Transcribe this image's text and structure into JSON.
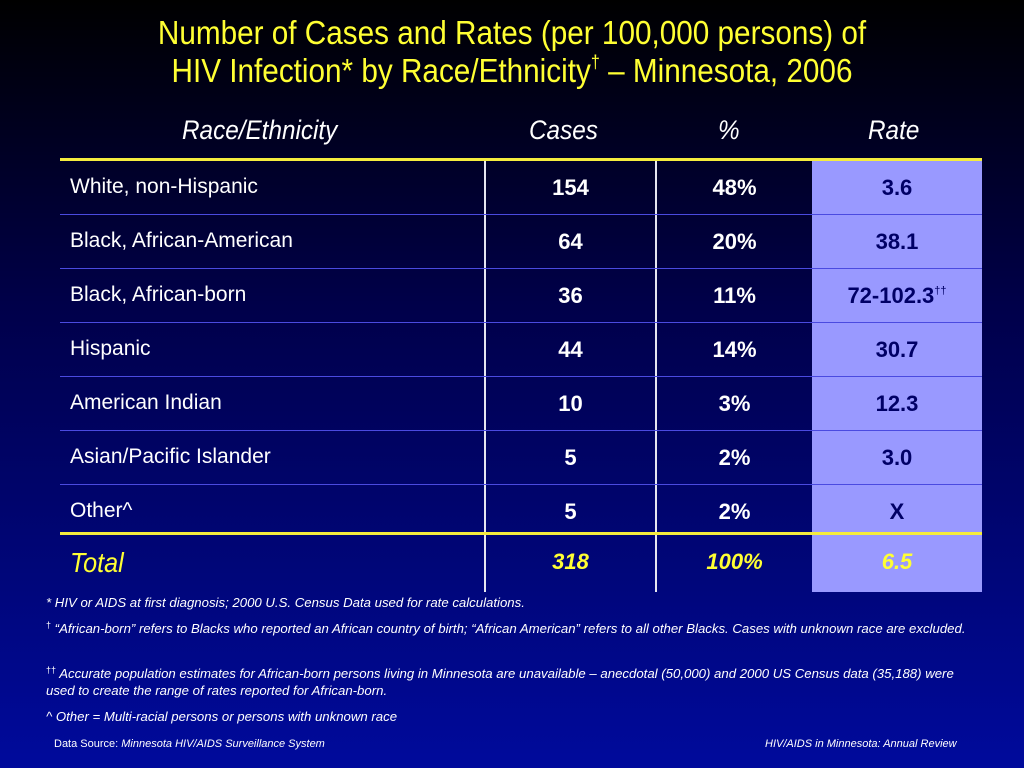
{
  "title": {
    "line1": "Number of Cases and Rates (per 100,000 persons) of",
    "line2_main": "HIV Infection* by Race/Ethnicity",
    "line2_mark": "†",
    "line2_tail": " – Minnesota, 2006"
  },
  "columns": {
    "race": "Race/Ethnicity",
    "cases": "Cases",
    "pct": "%",
    "rate": "Rate"
  },
  "rows": [
    {
      "race": "White, non-Hispanic",
      "cases": "154",
      "pct": "48%",
      "rate": "3.6",
      "rate_mark": ""
    },
    {
      "race": "Black, African-American",
      "cases": "64",
      "pct": "20%",
      "rate": "38.1",
      "rate_mark": ""
    },
    {
      "race": "Black, African-born",
      "cases": "36",
      "pct": "11%",
      "rate": "72-102.3",
      "rate_mark": "††"
    },
    {
      "race": "Hispanic",
      "cases": "44",
      "pct": "14%",
      "rate": "30.7",
      "rate_mark": ""
    },
    {
      "race": "American Indian",
      "cases": "10",
      "pct": "3%",
      "rate": "12.3",
      "rate_mark": ""
    },
    {
      "race": "Asian/Pacific Islander",
      "cases": "5",
      "pct": "2%",
      "rate": "3.0",
      "rate_mark": ""
    },
    {
      "race": "Other^",
      "cases": "5",
      "pct": "2%",
      "rate": "X",
      "rate_mark": ""
    }
  ],
  "total": {
    "race": "Total",
    "cases": "318",
    "pct": "100%",
    "rate": "6.5"
  },
  "notes": {
    "n1": "* HIV or AIDS at first diagnosis; 2000 U.S. Census Data used for rate calculations.",
    "n2_mark": "†",
    "n2": " “African-born” refers to Blacks who reported an African country of birth; “African American” refers to all other Blacks.  Cases with unknown race are excluded.",
    "n3_mark": "††",
    "n3": " Accurate population estimates for African-born persons living in Minnesota are unavailable – anecdotal (50,000) and 2000 US Census data (35,188) were used to create the range of rates reported for African-born.",
    "n4": "^ Other = Multi-racial persons or persons with unknown race"
  },
  "footer": {
    "source_label": "Data Source: ",
    "source": "Minnesota HIV/AIDS Surveillance System",
    "right": "HIV/AIDS in Minnesota: Annual Review"
  },
  "colors": {
    "title": "#ffff33",
    "rate_column": "#9999ff",
    "rule": "#f5ec3e"
  }
}
